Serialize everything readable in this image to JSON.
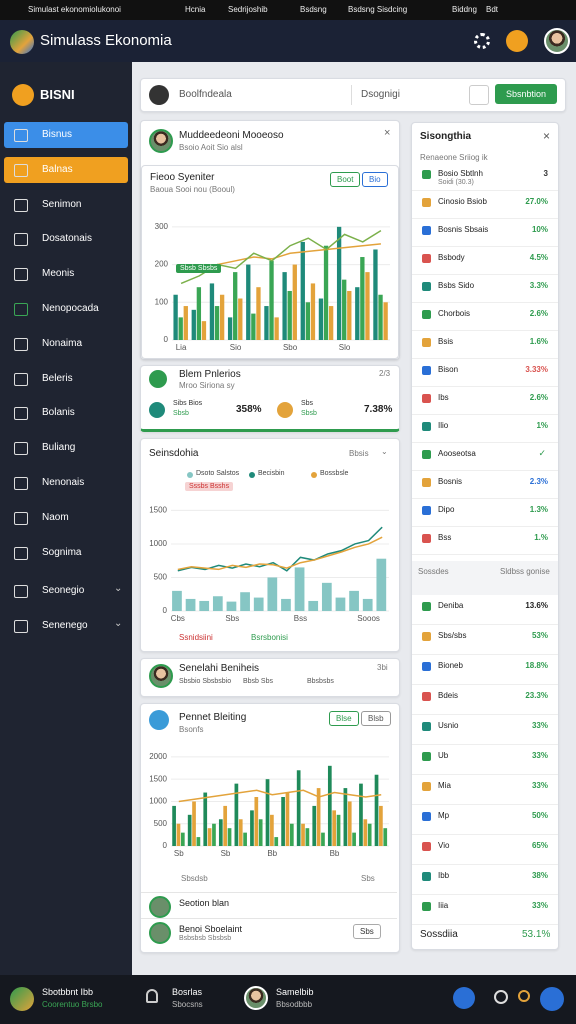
{
  "status_bar": [
    "Simulast ekonomiolukonoi",
    "Hcnia",
    "Sedrijoshib",
    "Bsdsng",
    "Bsdsng Sisdcing",
    "Biddng",
    "Bdt"
  ],
  "header": {
    "title": "Simulass Ekonomia"
  },
  "sidebar": {
    "brand": "BISNI",
    "items": [
      "Bisnus",
      "Balnas",
      "Senimon",
      "Dosatonais",
      "Meonis",
      "Nenopocada",
      "Nonaima",
      "Beleris",
      "Bolanis",
      "Buliang",
      "Nenonais",
      "Naom",
      "Sognima",
      "Seonegio",
      "Senenego"
    ]
  },
  "search": {
    "placeholder": "Boolfndeala",
    "field": "Dsognigi",
    "button": "Sbsnbtion"
  },
  "profile_card": {
    "name": "Muddeedeoni Mooeoso",
    "sub": "Bsoio Aoit Sio alsl"
  },
  "charts": [
    {
      "type": "bar",
      "title": "Fieoo Syeniter",
      "subtitle": "Baoua Sooi nou (Booul)",
      "buttons": [
        "Boot",
        "Bio"
      ],
      "badge": "Sbsb Sbsbs",
      "categories": [
        "Lia",
        null,
        null,
        "Sio",
        null,
        null,
        "Sbo",
        null,
        null,
        "Slo",
        null,
        null
      ],
      "series": [
        {
          "kind": "bar",
          "color": "#1f8a7a",
          "values": [
            120,
            80,
            150,
            60,
            200,
            90,
            180,
            260,
            110,
            300,
            140,
            240
          ]
        },
        {
          "kind": "bar",
          "color": "#3aa655",
          "values": [
            60,
            140,
            90,
            180,
            70,
            210,
            130,
            100,
            250,
            160,
            220,
            120
          ]
        },
        {
          "kind": "bar",
          "color": "#e3a33b",
          "values": [
            90,
            50,
            120,
            110,
            140,
            60,
            200,
            150,
            90,
            130,
            180,
            100
          ]
        },
        {
          "kind": "line",
          "color": "#e3a33b",
          "values": [
            180,
            190,
            200,
            210,
            220,
            215,
            230,
            235,
            240,
            245,
            250,
            255
          ]
        },
        {
          "kind": "line",
          "color": "#7bb04a",
          "values": [
            150,
            170,
            200,
            190,
            230,
            210,
            250,
            270,
            240,
            280,
            260,
            290
          ]
        }
      ],
      "ylim": [
        0,
        350
      ],
      "yticks": [
        0,
        100,
        200,
        300
      ],
      "grid": true
    },
    {
      "type": "bar",
      "title": "Seinsdohia",
      "menu": "Bbsis",
      "badge": "Sssbs Bsshs",
      "notes": [
        "Ssnidsiini",
        "Bsrsbonisi"
      ],
      "categories": [
        "Cbs",
        null,
        null,
        null,
        "Sbs",
        null,
        null,
        null,
        null,
        "Bss",
        null,
        null,
        null,
        null,
        "Sooos",
        null
      ],
      "series": [
        {
          "kind": "bar",
          "name": "Dsoto Salstos",
          "color": "#86c6c4",
          "values": [
            300,
            180,
            150,
            220,
            140,
            280,
            200,
            500,
            180,
            650,
            150,
            420,
            200,
            300,
            180,
            780
          ]
        },
        {
          "kind": "line",
          "name": "Becisbin",
          "color": "#1f8a7a",
          "values": [
            600,
            650,
            620,
            680,
            640,
            700,
            660,
            720,
            600,
            800,
            760,
            850,
            900,
            1000,
            1050,
            1250
          ]
        },
        {
          "kind": "line",
          "name": "Bossbsle",
          "color": "#e3a33b",
          "values": [
            620,
            660,
            640,
            620,
            680,
            650,
            700,
            690,
            640,
            720,
            760,
            820,
            880,
            950,
            1000,
            1100
          ]
        }
      ],
      "ylim": [
        0,
        1700
      ],
      "yticks": [
        0,
        500,
        1000,
        1500
      ],
      "grid": true
    },
    {
      "type": "bar",
      "title": "Pennet Bleiting",
      "subtitle": "Bsonfs",
      "buttons": [
        "Blse",
        "Blsb"
      ],
      "notes": [
        "Sbsdsb",
        "Sbs"
      ],
      "categories": [
        "Sb",
        null,
        null,
        "Sb",
        null,
        null,
        "Bb",
        null,
        null,
        null,
        "Bb",
        null,
        null,
        null
      ],
      "series": [
        {
          "kind": "bar",
          "color": "#1f8a5a",
          "values": [
            900,
            700,
            1200,
            600,
            1400,
            800,
            1500,
            1100,
            1700,
            900,
            1800,
            1300,
            1400,
            1600
          ]
        },
        {
          "kind": "bar",
          "color": "#e3a33b",
          "values": [
            500,
            1000,
            400,
            900,
            600,
            1100,
            700,
            1200,
            500,
            1300,
            800,
            1000,
            600,
            900
          ]
        },
        {
          "kind": "bar",
          "color": "#3aa655",
          "values": [
            300,
            200,
            500,
            400,
            300,
            600,
            200,
            500,
            400,
            300,
            700,
            300,
            500,
            400
          ]
        },
        {
          "kind": "line",
          "color": "#e3a33b",
          "values": [
            1000,
            1050,
            1100,
            1150,
            1200,
            1250,
            1150,
            1200,
            1250,
            1100,
            1200,
            1150,
            1100,
            1150
          ]
        }
      ],
      "ylim": [
        0,
        2200
      ],
      "yticks": [
        0,
        500,
        1000,
        1500,
        2000
      ],
      "grid": true
    }
  ],
  "problem_card": {
    "title": "Blem Pnlerios",
    "sub": "Mroo Siriona sy",
    "count": "2/3",
    "items": [
      {
        "label": "Sibs Bios",
        "sub": "Sbsb",
        "value": "358%"
      },
      {
        "label": "Sbs",
        "sub": "Sbsb",
        "value": "7.38%"
      }
    ]
  },
  "person_card": {
    "title": "Senelahi Beniheis",
    "tags": [
      "Sbsbio Sbsbsbio",
      "Bbsb Sbs",
      "Bbsbsbs"
    ],
    "count": "3bi"
  },
  "footer_rows": [
    {
      "title": "Seotion blan"
    },
    {
      "title": "Benoi Sboelaint",
      "sub": "Bsbsbsb Sbsbsb",
      "button": "Sbs"
    }
  ],
  "panel": {
    "title": "Sisongthia",
    "sub": "Renaeone Sriiog ik",
    "rows": [
      {
        "label": "Bosio Sbtlnh",
        "sub": "Soidi (30.3)",
        "value": "3",
        "color": "#333333"
      },
      {
        "label": "Cinosio Bsiob",
        "value": "27.0%",
        "color": "#2e9b4e"
      },
      {
        "label": "Bosnis Sbsais",
        "value": "10%",
        "color": "#2e9b4e"
      },
      {
        "label": "Bsbody",
        "value": "4.5%",
        "color": "#2e9b4e"
      },
      {
        "label": "Bsbs Sido",
        "value": "3.3%",
        "color": "#2e9b4e"
      },
      {
        "label": "Chorbois",
        "value": "2.6%",
        "color": "#2e9b4e"
      },
      {
        "label": "Bsis",
        "value": "1.6%",
        "color": "#2e9b4e"
      },
      {
        "label": "Bison",
        "value": "3.33%",
        "color": "#d9534f"
      },
      {
        "label": "Ibs",
        "value": "2.6%",
        "color": "#2e9b4e"
      },
      {
        "label": "Ilio",
        "value": "1%",
        "color": "#2e9b4e"
      },
      {
        "label": "Aooseotsa",
        "color": "#2e9b4e"
      },
      {
        "label": "Bosnis",
        "value": "2.3%",
        "color": "#2a6fd6"
      },
      {
        "label": "Dipo",
        "value": "1.3%",
        "color": "#2e9b4e"
      },
      {
        "label": "Bss",
        "value": "1.%",
        "color": "#2e9b4e"
      }
    ],
    "section": {
      "title": "Sossdes",
      "sub": "Sldbss gonise"
    },
    "rows2": [
      {
        "label": "Deniba",
        "value": "13.6%",
        "color": "#222222"
      },
      {
        "label": "Sbs/sbs",
        "value": "53%",
        "color": "#2e9b4e"
      },
      {
        "label": "Bioneb",
        "value": "18.8%",
        "color": "#2e9b4e"
      },
      {
        "label": "Bdeis",
        "value": "23.3%",
        "color": "#2e9b4e"
      },
      {
        "label": "Usnio",
        "value": "33%",
        "color": "#2e9b4e"
      },
      {
        "label": "Ub",
        "value": "33%",
        "color": "#2e9b4e"
      },
      {
        "label": "Mia",
        "value": "33%",
        "color": "#2e9b4e"
      },
      {
        "label": "Mp",
        "value": "50%",
        "color": "#2e9b4e"
      },
      {
        "label": "Vio",
        "value": "65%",
        "color": "#2e9b4e"
      },
      {
        "label": "Ibb",
        "value": "38%",
        "color": "#2e9b4e"
      },
      {
        "label": "Iiia",
        "value": "33%",
        "color": "#2e9b4e"
      }
    ],
    "total": {
      "label": "Sossdiia",
      "value": "53.1%"
    }
  },
  "bottom_bar": {
    "brand": "Sbotbbnt Ibb",
    "brand_sub": "Coorentuo Brsbo",
    "notif": "Bosrlas",
    "notif_sub": "Sbocsns",
    "user": "Samelbib",
    "user_sub": "Bbsodbbb"
  }
}
